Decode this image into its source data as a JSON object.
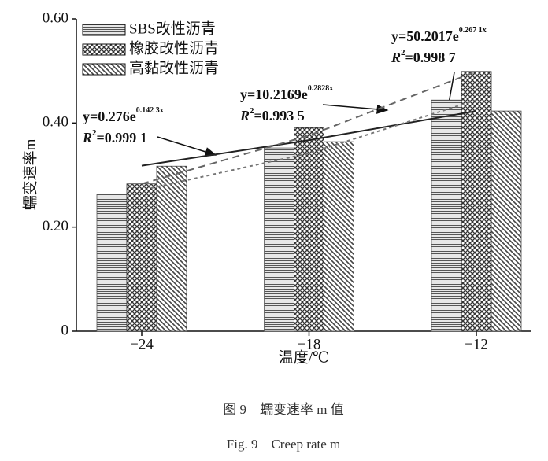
{
  "chart_data": {
    "type": "bar",
    "xlabel": "温度/℃",
    "ylabel": "蠕变速率m",
    "categories": [
      "−24",
      "−18",
      "−12"
    ],
    "series": [
      {
        "name": "SBS改性沥青",
        "color": "#555555",
        "pattern": "horizontal",
        "values": [
          0.263,
          0.352,
          0.444
        ]
      },
      {
        "name": "橡胶改性沥青",
        "color": "#333333",
        "pattern": "crosshatch",
        "values": [
          0.283,
          0.391,
          0.499
        ]
      },
      {
        "name": "高黏改性沥青",
        "color": "#444444",
        "pattern": "diagonal",
        "values": [
          0.317,
          0.364,
          0.423
        ]
      }
    ],
    "trend_lines": [
      {
        "color": "#222222",
        "dash": "solid",
        "values": [
          0.318,
          0.367,
          0.423
        ]
      },
      {
        "color": "#666666",
        "dash": "long",
        "values": [
          0.283,
          0.376,
          0.499
        ]
      },
      {
        "color": "#777777",
        "dash": "short",
        "values": [
          0.275,
          0.342,
          0.444
        ]
      }
    ],
    "annotations": [
      {
        "equation": {
          "base": "y=0.276e",
          "exponent": "0.142 3x"
        },
        "r2": {
          "base": "R",
          "exponent": "2",
          "value": "=0.999 1"
        }
      },
      {
        "equation": {
          "base": "y=10.2169e",
          "exponent": "0.2828x"
        },
        "r2": {
          "base": "R",
          "exponent": "2",
          "value": "=0.993 5"
        }
      },
      {
        "equation": {
          "base": "y=50.2017e",
          "exponent": "0.267 1x"
        },
        "r2": {
          "base": "R",
          "exponent": "2",
          "value": "=0.998 7"
        }
      }
    ],
    "ylim": [
      0,
      0.6
    ],
    "yticks": [
      0,
      {
        "value": 0.2,
        "label": "0.20"
      },
      {
        "value": 0.4,
        "label": "0.40"
      },
      {
        "value": 0.6,
        "label": "0.60"
      }
    ],
    "caption": [
      "图 9　蠕变速率 m 值",
      "Fig. 9　Creep rate m"
    ]
  }
}
